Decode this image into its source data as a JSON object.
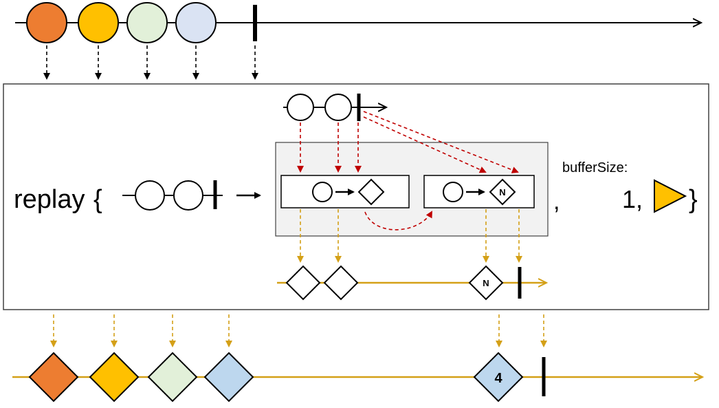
{
  "operator": {
    "name": "replay",
    "open_brace": "{",
    "comma": ",",
    "param_label": "bufferSize:",
    "param_value": "1,",
    "close_brace": "}"
  },
  "inner": {
    "diamond_label": "N"
  },
  "output": {
    "labeled_diamond_text": "4"
  },
  "colors": {
    "orange": "#ED7D31",
    "yellow": "#FFC000",
    "green": "#E2F0D9",
    "blue": "#DAE3F3",
    "blue_diamond": "#BDD7EE",
    "gold_line": "#D4A017",
    "red_arrow": "#C00000",
    "panel_bg": "#F2F2F2"
  }
}
